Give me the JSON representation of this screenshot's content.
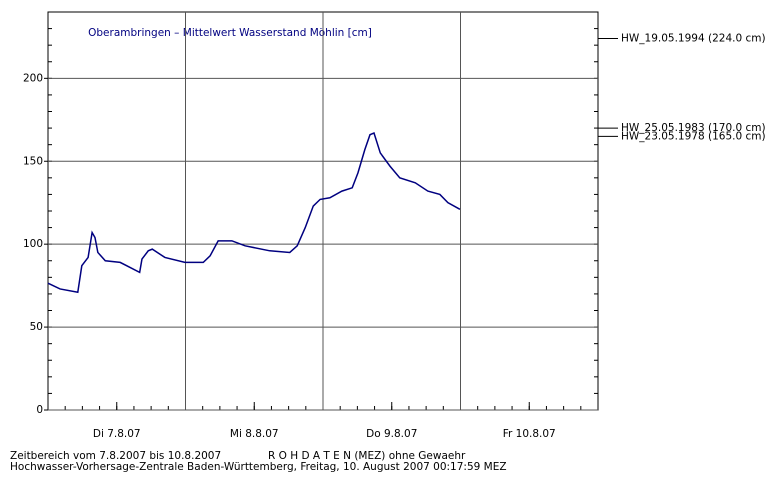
{
  "chart_data": {
    "type": "line",
    "title": "Oberambringen – Mittelwert Wasserstand Möhlin [cm]",
    "x": [
      0,
      2.1,
      5.2,
      5.9,
      7,
      7.7,
      8.2,
      8.7,
      10,
      12.6,
      16,
      16.4,
      17.5,
      18.2,
      20.4,
      23.9,
      27.1,
      28.3,
      29.7,
      32.1,
      34.4,
      38.7,
      42.2,
      43.5,
      44.9,
      46.3,
      47.5,
      49.2,
      51.3,
      53.1,
      54.1,
      55.3,
      56.2,
      56.9,
      58,
      59.7,
      61.4,
      64.1,
      66.3,
      68.4,
      69.8,
      71.9
    ],
    "series": [
      {
        "name": "Wasserstand Möhlin",
        "color": "#000080",
        "values": [
          76.5,
          73,
          71,
          87,
          92,
          107,
          104,
          95,
          90,
          89,
          83,
          91,
          96,
          97,
          92,
          89,
          89,
          93,
          102,
          102,
          99,
          96,
          95,
          99,
          110,
          123,
          127,
          128,
          132,
          134,
          143,
          157,
          166,
          167,
          155,
          147,
          140,
          137,
          132,
          130,
          125,
          121
        ]
      }
    ],
    "xlim": [
      0,
      96
    ],
    "xticks": [
      {
        "value": 12,
        "label": "Di 7.8.07"
      },
      {
        "value": 36,
        "label": "Mi 8.8.07"
      },
      {
        "value": 60,
        "label": "Do 9.8.07"
      },
      {
        "value": 84,
        "label": "Fr 10.8.07"
      }
    ],
    "xgrid": [
      24,
      48,
      72
    ],
    "xminor_step": 3,
    "ylim": [
      0,
      240
    ],
    "yticks": [
      0,
      50,
      100,
      150,
      200
    ],
    "yminor_step": 10,
    "grid": true,
    "reference_levels": [
      {
        "value": 224,
        "label": "HW_19.05.1994 (224.0 cm)"
      },
      {
        "value": 170,
        "label": "HW_25.05.1983 (170.0 cm)"
      },
      {
        "value": 165,
        "label": "HW_23.05.1978 (165.0 cm)"
      }
    ],
    "footer": [
      "Zeitbereich vom 7.8.2007 bis 10.8.2007",
      "R O H D A T E N (MEZ) ohne Gewaehr",
      "Hochwasser-Vorhersage-Zentrale Baden-Württemberg, Freitag, 10. August 2007 00:17:59 MEZ"
    ]
  }
}
